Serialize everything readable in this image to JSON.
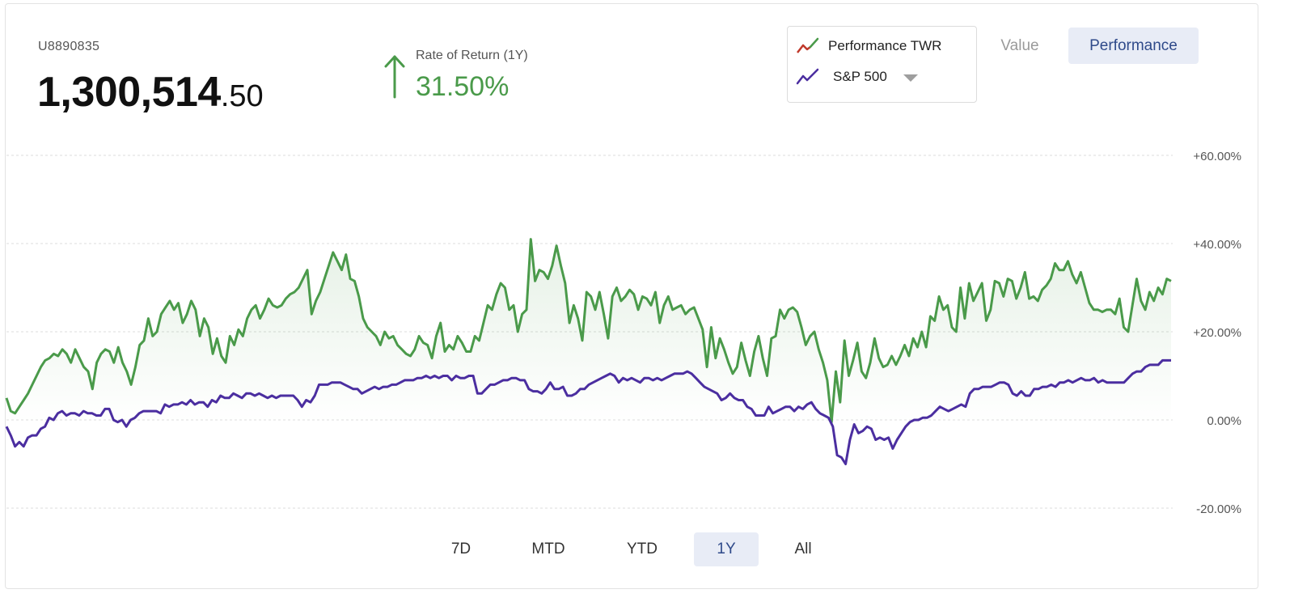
{
  "account": {
    "id": "U8890835",
    "balance_whole": "1,300,514",
    "balance_cents": ".50"
  },
  "rate_of_return": {
    "label": "Rate of Return (1Y)",
    "value": "31.50%",
    "direction_icon": "arrow-up-icon",
    "color": "#4a9a4a"
  },
  "legend": {
    "items": [
      {
        "label": "Performance TWR",
        "icon": "line-chart-icon",
        "color": "#4a9a4a"
      },
      {
        "label": "S&P 500",
        "icon": "line-chart-icon",
        "color": "#4b2ea0"
      }
    ],
    "dropdown_icon": "caret-down-icon"
  },
  "view_toggle": {
    "value_label": "Value",
    "performance_label": "Performance",
    "selected": "Performance"
  },
  "ranges": {
    "options": [
      "7D",
      "MTD",
      "YTD",
      "1Y",
      "All"
    ],
    "selected": "1Y"
  },
  "chart_data": {
    "type": "line",
    "title": "",
    "xlabel": "",
    "ylabel": "",
    "ylim": [
      -20,
      60
    ],
    "yticks": [
      60,
      40,
      20,
      0,
      -20
    ],
    "ytick_labels": [
      "+60.00%",
      "+40.00%",
      "+20.00%",
      "0.00%",
      "-20.00%"
    ],
    "grid": true,
    "legend_position": "top-right",
    "series": [
      {
        "name": "Performance TWR",
        "color": "#4a9a4a",
        "fill": true,
        "values": [
          5.0,
          2.0,
          1.5,
          3.0,
          4.5,
          6.0,
          8.0,
          10.0,
          12.0,
          13.5,
          14.0,
          15.0,
          14.5,
          16.0,
          15.0,
          13.0,
          16.0,
          14.0,
          12.0,
          11.0,
          7.0,
          13.0,
          15.0,
          16.0,
          15.5,
          13.0,
          16.5,
          13.0,
          11.0,
          8.0,
          12.0,
          17.0,
          18.0,
          23.0,
          19.0,
          20.0,
          24.0,
          25.5,
          27.0,
          25.0,
          26.5,
          22.0,
          24.0,
          27.0,
          25.0,
          19.0,
          23.0,
          21.0,
          15.0,
          18.5,
          14.5,
          13.0,
          19.0,
          17.0,
          20.5,
          19.0,
          23.0,
          25.0,
          26.0,
          23.0,
          25.0,
          27.5,
          26.0,
          25.5,
          26.0,
          27.5,
          28.5,
          29.0,
          30.0,
          32.0,
          34.0,
          24.0,
          27.0,
          29.0,
          32.0,
          35.0,
          38.0,
          36.0,
          34.0,
          37.5,
          32.0,
          31.5,
          28.0,
          23.0,
          21.0,
          20.0,
          19.0,
          17.0,
          20.0,
          18.5,
          19.0,
          17.0,
          16.0,
          15.0,
          14.5,
          16.0,
          19.0,
          17.5,
          17.0,
          14.0,
          19.0,
          22.0,
          15.5,
          17.0,
          16.0,
          19.0,
          17.5,
          15.5,
          15.5,
          19.0,
          18.0,
          22.0,
          26.0,
          25.0,
          28.5,
          31.0,
          30.0,
          25.0,
          26.0,
          20.0,
          24.0,
          25.0,
          41.0,
          31.5,
          34.0,
          33.5,
          32.0,
          35.0,
          39.5,
          35.0,
          31.0,
          22.0,
          26.0,
          23.0,
          18.0,
          29.0,
          28.0,
          25.0,
          29.0,
          24.0,
          18.5,
          28.0,
          30.0,
          27.0,
          28.0,
          29.5,
          28.5,
          25.0,
          28.0,
          27.5,
          26.0,
          29.0,
          22.0,
          26.0,
          28.0,
          25.0,
          25.5,
          26.0,
          24.0,
          25.0,
          25.5,
          23.0,
          20.5,
          12.0,
          21.0,
          14.0,
          18.5,
          16.0,
          13.0,
          10.5,
          12.0,
          17.5,
          13.5,
          10.0,
          15.5,
          19.0,
          14.0,
          10.0,
          18.5,
          19.0,
          25.0,
          23.0,
          25.0,
          25.5,
          24.5,
          21.0,
          17.0,
          19.0,
          20.0,
          16.0,
          13.0,
          9.0,
          -0.5,
          11.0,
          4.0,
          18.0,
          10.0,
          13.5,
          17.5,
          11.0,
          9.5,
          13.0,
          18.5,
          14.0,
          12.0,
          12.5,
          14.5,
          12.5,
          14.5,
          17.0,
          14.5,
          18.5,
          16.5,
          20.0,
          16.5,
          23.5,
          22.5,
          28.0,
          25.0,
          26.0,
          21.0,
          20.0,
          30.0,
          23.0,
          31.0,
          27.0,
          29.0,
          31.0,
          22.5,
          25.0,
          31.5,
          31.0,
          28.0,
          32.0,
          31.5,
          27.5,
          30.0,
          33.5,
          27.5,
          28.0,
          27.0,
          29.5,
          30.5,
          32.0,
          35.5,
          34.0,
          34.0,
          36.0,
          33.0,
          31.0,
          33.5,
          30.0,
          26.5,
          25.0,
          25.0,
          24.5,
          25.0,
          25.0,
          24.0,
          27.5,
          21.0,
          20.0,
          26.0,
          32.0,
          27.0,
          25.0,
          29.0,
          27.0,
          30.0,
          28.5,
          32.0,
          31.5
        ]
      },
      {
        "name": "S&P 500",
        "color": "#4b2ea0",
        "fill": false,
        "values": [
          -1.5,
          -3.5,
          -6.0,
          -5.0,
          -6.0,
          -4.0,
          -3.5,
          -3.5,
          -2.0,
          -1.5,
          0.5,
          0.0,
          1.5,
          2.0,
          1.0,
          1.5,
          1.5,
          1.0,
          2.0,
          1.5,
          1.5,
          1.0,
          1.0,
          2.5,
          2.5,
          0.0,
          -0.5,
          0.0,
          -1.5,
          0.0,
          0.5,
          1.5,
          2.0,
          2.0,
          2.0,
          2.0,
          1.5,
          3.5,
          3.0,
          3.5,
          3.5,
          4.0,
          3.5,
          4.5,
          3.5,
          4.0,
          4.0,
          3.0,
          4.5,
          4.0,
          5.5,
          5.0,
          5.0,
          6.0,
          5.5,
          5.0,
          6.0,
          6.0,
          5.5,
          6.0,
          5.5,
          5.0,
          5.5,
          5.0,
          5.5,
          5.5,
          5.5,
          5.5,
          4.5,
          3.0,
          4.5,
          4.0,
          5.5,
          8.0,
          8.0,
          8.0,
          8.5,
          8.5,
          8.5,
          8.0,
          7.5,
          7.0,
          7.0,
          6.0,
          6.5,
          7.0,
          7.5,
          7.0,
          7.5,
          7.5,
          8.0,
          8.0,
          8.5,
          9.0,
          9.0,
          9.0,
          9.5,
          9.5,
          10.0,
          9.5,
          10.0,
          9.5,
          10.0,
          10.0,
          9.0,
          10.0,
          9.5,
          9.5,
          10.0,
          10.0,
          6.0,
          6.0,
          7.0,
          8.0,
          8.0,
          8.5,
          9.0,
          9.0,
          9.5,
          9.5,
          9.0,
          9.0,
          7.0,
          6.5,
          6.5,
          6.0,
          7.0,
          8.5,
          7.0,
          7.0,
          7.5,
          5.5,
          5.5,
          6.0,
          7.0,
          7.0,
          8.0,
          8.5,
          9.0,
          9.5,
          10.0,
          10.5,
          10.0,
          8.5,
          9.5,
          9.0,
          9.5,
          9.0,
          8.5,
          9.5,
          9.5,
          9.0,
          9.5,
          9.0,
          9.5,
          10.0,
          10.5,
          10.5,
          10.5,
          11.0,
          10.5,
          9.5,
          8.5,
          7.5,
          7.0,
          6.5,
          6.0,
          4.5,
          5.0,
          6.0,
          5.0,
          4.5,
          4.5,
          3.0,
          2.5,
          1.0,
          1.0,
          1.0,
          3.0,
          1.5,
          2.0,
          2.5,
          3.0,
          3.0,
          2.0,
          3.0,
          2.5,
          3.5,
          4.0,
          2.5,
          1.5,
          1.0,
          0.5,
          -1.5,
          -8.0,
          -8.5,
          -10.0,
          -4.5,
          -1.0,
          -3.0,
          -2.5,
          -1.5,
          -2.0,
          -4.5,
          -4.0,
          -4.5,
          -4.0,
          -6.5,
          -4.5,
          -3.0,
          -1.5,
          -0.5,
          0.0,
          0.0,
          0.5,
          0.5,
          1.0,
          2.0,
          3.0,
          2.5,
          2.0,
          2.5,
          3.0,
          3.5,
          3.0,
          6.0,
          7.0,
          7.0,
          7.5,
          7.5,
          7.5,
          8.0,
          8.5,
          8.5,
          8.0,
          6.0,
          5.5,
          6.5,
          5.5,
          5.5,
          7.0,
          7.0,
          7.5,
          7.5,
          8.0,
          7.5,
          8.5,
          8.5,
          9.0,
          8.5,
          9.0,
          9.5,
          9.0,
          9.0,
          9.5,
          8.5,
          9.0,
          8.5,
          8.5,
          8.5,
          8.5,
          8.5,
          9.5,
          10.5,
          11.0,
          11.0,
          12.0,
          12.5,
          12.5,
          12.5,
          13.5,
          13.5,
          13.5
        ]
      }
    ]
  }
}
